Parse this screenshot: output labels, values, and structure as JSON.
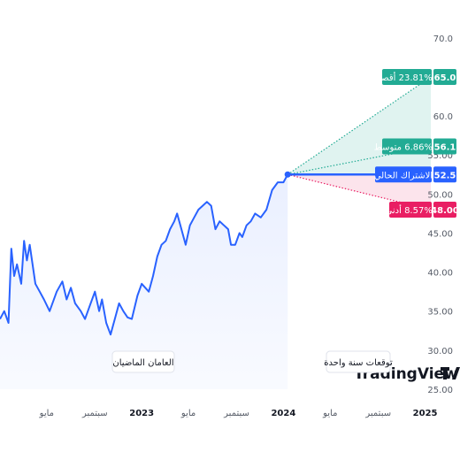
{
  "chart_data": {
    "type": "line",
    "y_axis": {
      "position": "right",
      "ylim": [
        25,
        71
      ],
      "ticks": [
        "70.0",
        "65.0",
        "60.0",
        "55.00",
        "50.00",
        "45.00",
        "40.00",
        "35.00",
        "30.00",
        "25.00"
      ],
      "tick_values": [
        70,
        65,
        60,
        55,
        50,
        45,
        40,
        35,
        30,
        25
      ]
    },
    "x_axis": {
      "labels": [
        {
          "text": "مايو",
          "date": "2022.33",
          "bold": false
        },
        {
          "text": "سبتمبر",
          "date": "2022.67",
          "bold": false
        },
        {
          "text": "2023",
          "date": "2023.00",
          "bold": true
        },
        {
          "text": "مايو",
          "date": "2023.33",
          "bold": false
        },
        {
          "text": "سبتمبر",
          "date": "2023.67",
          "bold": false
        },
        {
          "text": "2024",
          "date": "2024.00",
          "bold": true
        },
        {
          "text": "مايو",
          "date": "2024.33",
          "bold": false
        },
        {
          "text": "سبتمبر",
          "date": "2024.67",
          "bold": false
        },
        {
          "text": "2025",
          "date": "2025.00",
          "bold": true
        }
      ],
      "xlim": [
        "2022.00",
        "2025.04"
      ]
    },
    "series": [
      {
        "history": [
          [
            "2022.00",
            34.0
          ],
          [
            "2022.03",
            35.0
          ],
          [
            "2022.06",
            33.5
          ],
          [
            "2022.08",
            43.0
          ],
          [
            "2022.10",
            39.5
          ],
          [
            "2022.12",
            41.0
          ],
          [
            "2022.15",
            38.5
          ],
          [
            "2022.17",
            44.0
          ],
          [
            "2022.19",
            41.5
          ],
          [
            "2022.21",
            43.5
          ],
          [
            "2022.25",
            38.5
          ],
          [
            "2022.28",
            37.5
          ],
          [
            "2022.31",
            36.5
          ],
          [
            "2022.35",
            35.0
          ],
          [
            "2022.40",
            37.5
          ],
          [
            "2022.44",
            38.8
          ],
          [
            "2022.47",
            36.5
          ],
          [
            "2022.50",
            38.0
          ],
          [
            "2022.53",
            36.0
          ],
          [
            "2022.57",
            35.0
          ],
          [
            "2022.60",
            34.0
          ],
          [
            "2022.63",
            35.5
          ],
          [
            "2022.67",
            37.5
          ],
          [
            "2022.70",
            35.0
          ],
          [
            "2022.72",
            36.5
          ],
          [
            "2022.75",
            33.5
          ],
          [
            "2022.78",
            32.0
          ],
          [
            "2022.81",
            34.0
          ],
          [
            "2022.84",
            36.0
          ],
          [
            "2022.87",
            35.0
          ],
          [
            "2022.90",
            34.2
          ],
          [
            "2022.93",
            34.0
          ],
          [
            "2022.97",
            37.0
          ],
          [
            "2023.00",
            38.5
          ],
          [
            "2023.05",
            37.5
          ],
          [
            "2023.08",
            39.5
          ],
          [
            "2023.11",
            42.0
          ],
          [
            "2023.14",
            43.5
          ],
          [
            "2023.17",
            44.0
          ],
          [
            "2023.20",
            45.5
          ],
          [
            "2023.23",
            46.5
          ],
          [
            "2023.25",
            47.5
          ],
          [
            "2023.28",
            45.5
          ],
          [
            "2023.31",
            43.5
          ],
          [
            "2023.34",
            46.0
          ],
          [
            "2023.37",
            47.0
          ],
          [
            "2023.40",
            48.0
          ],
          [
            "2023.43",
            48.5
          ],
          [
            "2023.46",
            49.0
          ],
          [
            "2023.49",
            48.5
          ],
          [
            "2023.52",
            45.5
          ],
          [
            "2023.55",
            46.5
          ],
          [
            "2023.58",
            46.0
          ],
          [
            "2023.61",
            45.5
          ],
          [
            "2023.63",
            43.5
          ],
          [
            "2023.66",
            43.5
          ],
          [
            "2023.69",
            45.0
          ],
          [
            "2023.71",
            44.5
          ],
          [
            "2023.74",
            46.0
          ],
          [
            "2023.77",
            46.5
          ],
          [
            "2023.80",
            47.5
          ],
          [
            "2023.84",
            47.0
          ],
          [
            "2023.88",
            48.0
          ],
          [
            "2023.92",
            50.5
          ],
          [
            "2023.96",
            51.5
          ],
          [
            "2024.00",
            51.5
          ],
          [
            "2024.03",
            52.5
          ]
        ],
        "forecast": [
          {
            "label": "أقصى",
            "pct": "+23.81%",
            "value": 65.0,
            "value_text": "65.0",
            "color": "#22ab94"
          },
          {
            "label": "متوسط",
            "pct": "+6.86%",
            "value": 56.1,
            "value_text": "56.1",
            "color": "#22ab94"
          },
          {
            "label": "الاشتراك الحالي",
            "pct": "",
            "value": 52.5,
            "value_text": "52.5",
            "color": "#2962ff"
          },
          {
            "label": "أدنى",
            "pct": "-8.57%",
            "value": 48.0,
            "value_text": "48.00",
            "color": "#e91e63"
          }
        ]
      }
    ],
    "colors": {
      "line": "#2962ff",
      "area": "#2962ff",
      "up": "#22ab94",
      "down": "#e91e63"
    }
  },
  "pills": {
    "past": "العامان الماضيان",
    "future": "توقعات سنة واحدة"
  },
  "watermark": "TradingView"
}
